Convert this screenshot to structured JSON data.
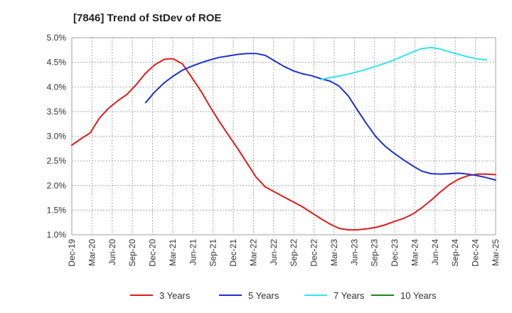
{
  "chart_data": {
    "type": "line",
    "title": "[7846]  Trend of StDev of ROE",
    "xlabel": "",
    "ylabel": "",
    "x_tick_labels": [
      "Dec-19",
      "Mar-20",
      "Jun-20",
      "Sep-20",
      "Dec-20",
      "Mar-21",
      "Jun-21",
      "Sep-21",
      "Dec-21",
      "Mar-22",
      "Jun-22",
      "Sep-22",
      "Dec-22",
      "Mar-23",
      "Jun-23",
      "Sep-23",
      "Dec-23",
      "Mar-24",
      "Jun-24",
      "Sep-24",
      "Dec-24",
      "Mar-25"
    ],
    "y_tick_labels": [
      "5.0%",
      "4.5%",
      "4.0%",
      "3.5%",
      "3.0%",
      "2.5%",
      "2.0%",
      "1.5%",
      "1.0%"
    ],
    "ylim": [
      1.0,
      5.0
    ],
    "grid": true,
    "legend_position": "bottom",
    "series": [
      {
        "name": "3 Years",
        "color": "#e31a1c",
        "points": [
          [
            0,
            2.82
          ],
          [
            1,
            2.95
          ],
          [
            2,
            3.07
          ],
          [
            3,
            3.37
          ],
          [
            4,
            3.57
          ],
          [
            5,
            3.72
          ],
          [
            6,
            3.85
          ],
          [
            7,
            4.05
          ],
          [
            8,
            4.28
          ],
          [
            9,
            4.45
          ],
          [
            10,
            4.56
          ],
          [
            10.5,
            4.57
          ],
          [
            11,
            4.57
          ],
          [
            12,
            4.47
          ],
          [
            13,
            4.2
          ],
          [
            14,
            3.92
          ],
          [
            15,
            3.6
          ],
          [
            16,
            3.3
          ],
          [
            17,
            3.02
          ],
          [
            18,
            2.75
          ],
          [
            19,
            2.46
          ],
          [
            20,
            2.17
          ],
          [
            21,
            1.97
          ],
          [
            22,
            1.87
          ],
          [
            23,
            1.77
          ],
          [
            24,
            1.67
          ],
          [
            25,
            1.57
          ],
          [
            26,
            1.45
          ],
          [
            27,
            1.33
          ],
          [
            28,
            1.22
          ],
          [
            29,
            1.13
          ],
          [
            30,
            1.1
          ],
          [
            31,
            1.1
          ],
          [
            32,
            1.12
          ],
          [
            33,
            1.15
          ],
          [
            34,
            1.2
          ],
          [
            35,
            1.27
          ],
          [
            36,
            1.33
          ],
          [
            37,
            1.42
          ],
          [
            38,
            1.55
          ],
          [
            39,
            1.7
          ],
          [
            40,
            1.87
          ],
          [
            41,
            2.02
          ],
          [
            42,
            2.13
          ],
          [
            43,
            2.2
          ],
          [
            44,
            2.23
          ],
          [
            45,
            2.23
          ],
          [
            46,
            2.22
          ]
        ]
      },
      {
        "name": "5 Years",
        "color": "#1f2fd1",
        "points": [
          [
            8,
            3.68
          ],
          [
            9,
            3.9
          ],
          [
            10,
            4.08
          ],
          [
            11,
            4.22
          ],
          [
            12,
            4.34
          ],
          [
            13,
            4.42
          ],
          [
            14,
            4.49
          ],
          [
            15,
            4.55
          ],
          [
            16,
            4.6
          ],
          [
            17,
            4.63
          ],
          [
            18,
            4.66
          ],
          [
            19,
            4.68
          ],
          [
            20,
            4.68
          ],
          [
            21,
            4.64
          ],
          [
            22,
            4.53
          ],
          [
            23,
            4.42
          ],
          [
            24,
            4.33
          ],
          [
            25,
            4.27
          ],
          [
            26,
            4.23
          ],
          [
            27,
            4.17
          ],
          [
            28,
            4.12
          ],
          [
            29,
            4.02
          ],
          [
            30,
            3.82
          ],
          [
            31,
            3.53
          ],
          [
            32,
            3.25
          ],
          [
            33,
            2.99
          ],
          [
            34,
            2.8
          ],
          [
            35,
            2.65
          ],
          [
            36,
            2.52
          ],
          [
            37,
            2.4
          ],
          [
            38,
            2.29
          ],
          [
            39,
            2.24
          ],
          [
            40,
            2.23
          ],
          [
            41,
            2.24
          ],
          [
            42,
            2.25
          ],
          [
            43,
            2.23
          ],
          [
            44,
            2.2
          ],
          [
            45,
            2.16
          ],
          [
            46,
            2.11
          ]
        ]
      },
      {
        "name": "7 Years",
        "color": "#33e6ee",
        "points": [
          [
            27,
            4.15
          ],
          [
            28,
            4.19
          ],
          [
            29,
            4.22
          ],
          [
            30,
            4.26
          ],
          [
            31,
            4.31
          ],
          [
            32,
            4.36
          ],
          [
            33,
            4.42
          ],
          [
            34,
            4.48
          ],
          [
            35,
            4.55
          ],
          [
            36,
            4.63
          ],
          [
            37,
            4.71
          ],
          [
            38,
            4.78
          ],
          [
            39,
            4.8
          ],
          [
            40,
            4.77
          ],
          [
            41,
            4.71
          ],
          [
            42,
            4.66
          ],
          [
            43,
            4.61
          ],
          [
            44,
            4.57
          ],
          [
            45,
            4.55
          ]
        ]
      },
      {
        "name": "10 Years",
        "color": "#1a8a1a",
        "points": []
      }
    ]
  }
}
